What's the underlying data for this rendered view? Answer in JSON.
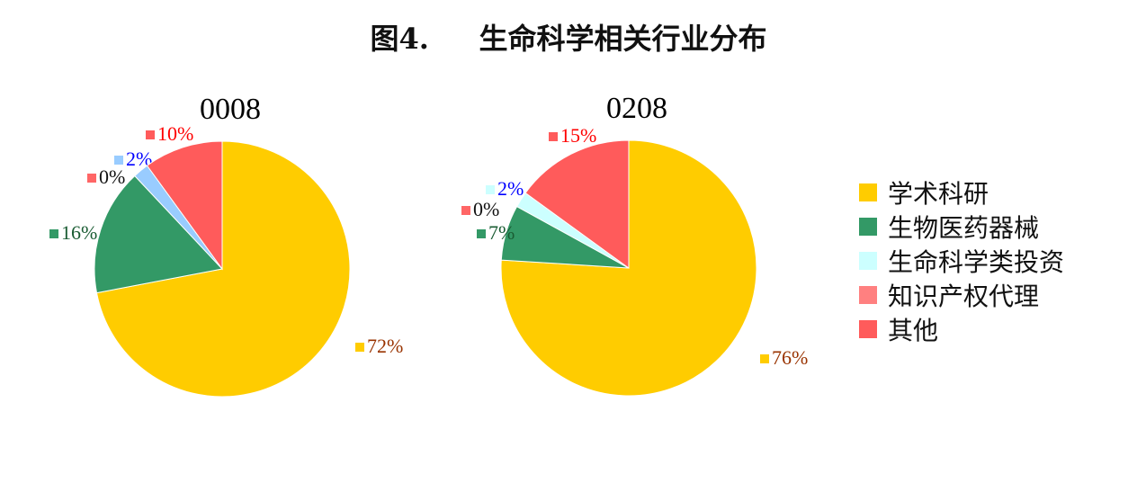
{
  "chart_data": [
    {
      "type": "pie",
      "title": "0008",
      "categories": [
        "学术科研",
        "生物医药器械",
        "知识产权代理",
        "生命科学类投资",
        "其他"
      ],
      "values": [
        72,
        16,
        0,
        2,
        10
      ],
      "labels": [
        "72%",
        "16%",
        "0%",
        "2%",
        "10%"
      ],
      "colors": [
        "#FFCC00",
        "#339966",
        "#FF6666",
        "#99CCFF",
        "#FF5B5B"
      ],
      "label_colors": [
        "#993300",
        "#1A5C33",
        "#111111",
        "#0000FF",
        "#FF0000"
      ]
    },
    {
      "type": "pie",
      "title": "0208",
      "categories": [
        "学术科研",
        "生物医药器械",
        "知识产权代理",
        "生命科学类投资",
        "其他"
      ],
      "values": [
        76,
        7,
        0,
        2,
        15
      ],
      "labels": [
        "76%",
        "7%",
        "0%",
        "2%",
        "15%"
      ],
      "colors": [
        "#FFCC00",
        "#339966",
        "#FF6666",
        "#CCFFFF",
        "#FF5B5B"
      ],
      "label_colors": [
        "#993300",
        "#1A5C33",
        "#111111",
        "#0000FF",
        "#FF0000"
      ]
    }
  ],
  "figure_title": "图4.     生命科学相关行业分布",
  "legend": [
    {
      "label": "学术科研",
      "color": "#FFCC00"
    },
    {
      "label": "生物医药器械",
      "color": "#339966"
    },
    {
      "label": "生命科学类投资",
      "color": "#CCFFFF"
    },
    {
      "label": "知识产权代理",
      "color": "#FF8080"
    },
    {
      "label": "其他",
      "color": "#FF5B5B"
    }
  ],
  "legend_position": "right"
}
